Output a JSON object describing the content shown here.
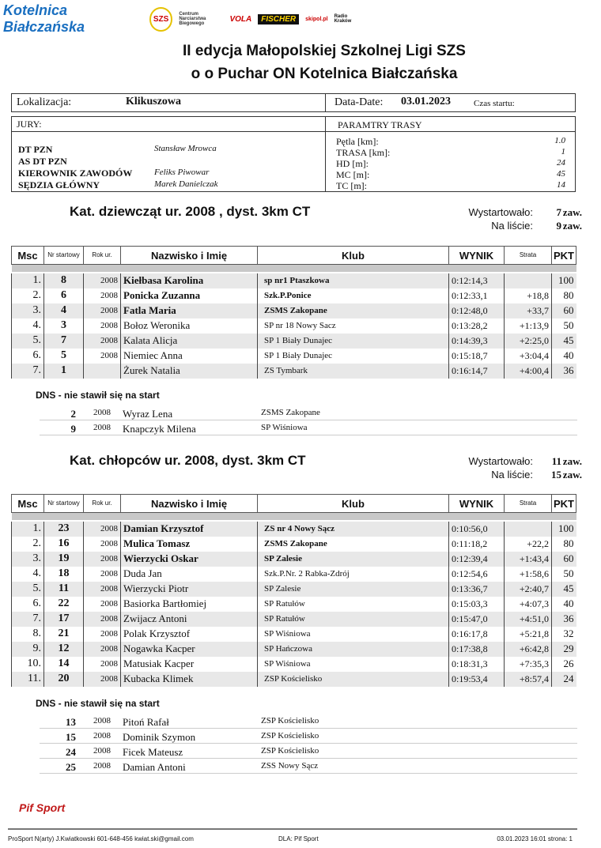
{
  "logos": [
    "Kotelnica Białczańska",
    "SZS",
    "Centrum Narciarstwa Biegowego",
    "VOLA",
    "FISCHER",
    "skipol.pl",
    "Radio Kraków"
  ],
  "title1": "II edycja Małopolskiej Szkolnej Ligi SZS",
  "title2": "o o Puchar ON Kotelnica Białczańska",
  "info": {
    "loc_label": "Lokalizacja:",
    "loc": "Klikuszowa",
    "date_label": "Data-Date:",
    "date": "03.01.2023",
    "start_label": "Czas startu:"
  },
  "jury": {
    "label": "JURY:",
    "roles": [
      {
        "r": "DT PZN",
        "n": "Stansław Mrowca"
      },
      {
        "r": "AS DT PZN",
        "n": ""
      },
      {
        "r": "KIEROWNIK ZAWODÓW",
        "n": "Feliks Piwowar"
      },
      {
        "r": "SĘDZIA GŁÓWNY",
        "n": "Marek Danielczak"
      }
    ]
  },
  "trasa": {
    "label": "PARAMTRY TRASY",
    "params": [
      {
        "k": "Pętla [km]:",
        "v": "1.0"
      },
      {
        "k": "TRASA [km]:",
        "v": "1"
      },
      {
        "k": "HD [m]:",
        "v": "24"
      },
      {
        "k": "MC [m]:",
        "v": "45"
      },
      {
        "k": "TC [m]:",
        "v": "14"
      }
    ]
  },
  "headers": [
    "Msc",
    "Nr startowy",
    "Rok ur.",
    "Nazwisko i Imię",
    "Klub",
    "WYNIK",
    "Strata",
    "PKT"
  ],
  "started_label": "Wystartowało:",
  "list_label": "Na liście:",
  "zaw": "zaw.",
  "dns_label": "DNS - nie stawił się na start",
  "categories": [
    {
      "title": "Kat. dziewcząt ur. 2008 , dyst. 3km CT",
      "started": "7",
      "listed": "9",
      "rows": [
        [
          "1.",
          "8",
          "2008",
          "Kiełbasa Karolina",
          "sp nr1 Ptaszkowa",
          "0:12:14,3",
          "",
          "100"
        ],
        [
          "2.",
          "6",
          "2008",
          "Ponicka Zuzanna",
          "Szk.P.Ponice",
          "0:12:33,1",
          "+18,8",
          "80"
        ],
        [
          "3.",
          "4",
          "2008",
          "Fatla Maria",
          "ZSMS Zakopane",
          "0:12:48,0",
          "+33,7",
          "60"
        ],
        [
          "4.",
          "3",
          "2008",
          "Bołoz Weronika",
          "SP nr 18 Nowy Sacz",
          "0:13:28,2",
          "+1:13,9",
          "50"
        ],
        [
          "5.",
          "7",
          "2008",
          "Kalata Alicja",
          "SP 1 Biały Dunajec",
          "0:14:39,3",
          "+2:25,0",
          "45"
        ],
        [
          "6.",
          "5",
          "2008",
          "Niemiec  Anna",
          "SP 1 Biały Dunajec",
          "0:15:18,7",
          "+3:04,4",
          "40"
        ],
        [
          "7.",
          "1",
          "",
          "Żurek Natalia",
          "ZS Tymbark",
          "0:16:14,7",
          "+4:00,4",
          "36"
        ]
      ],
      "dns": [
        [
          "2",
          "2008",
          "Wyraz Lena",
          "ZSMS Zakopane"
        ],
        [
          "9",
          "2008",
          "Knapczyk Milena",
          "SP Wiśniowa"
        ]
      ]
    },
    {
      "title": "Kat. chłopców ur. 2008, dyst. 3km CT",
      "started": "11",
      "listed": "15",
      "rows": [
        [
          "1.",
          "23",
          "2008",
          "Damian Krzysztof",
          "ZS nr  4  Nowy Sącz",
          "0:10:56,0",
          "",
          "100"
        ],
        [
          "2.",
          "16",
          "2008",
          "Mulica Tomasz",
          "ZSMS Zakopane",
          "0:11:18,2",
          "+22,2",
          "80"
        ],
        [
          "3.",
          "19",
          "2008",
          "Wierzycki Oskar",
          "SP Zalesie",
          "0:12:39,4",
          "+1:43,4",
          "60"
        ],
        [
          "4.",
          "18",
          "2008",
          "Duda Jan",
          "Szk.P.Nr. 2 Rabka-Zdrój",
          "0:12:54,6",
          "+1:58,6",
          "50"
        ],
        [
          "5.",
          "11",
          "2008",
          "Wierzycki Piotr",
          "SP Zalesie",
          "0:13:36,7",
          "+2:40,7",
          "45"
        ],
        [
          "6.",
          "22",
          "2008",
          "Basiorka Bartłomiej",
          "SP Ratułów",
          "0:15:03,3",
          "+4:07,3",
          "40"
        ],
        [
          "7.",
          "17",
          "2008",
          "Zwijacz Antoni",
          "SP Ratułów",
          "0:15:47,0",
          "+4:51,0",
          "36"
        ],
        [
          "8.",
          "21",
          "2008",
          "Polak Krzysztof",
          "SP Wiśniowa",
          "0:16:17,8",
          "+5:21,8",
          "32"
        ],
        [
          "9.",
          "12",
          "2008",
          "Nogawka Kacper",
          "SP Hańczowa",
          "0:17:38,8",
          "+6:42,8",
          "29"
        ],
        [
          "10.",
          "14",
          "2008",
          "Matusiak Kacper",
          "SP Wiśniowa",
          "0:18:31,3",
          "+7:35,3",
          "26"
        ],
        [
          "11.",
          "20",
          "2008",
          "Kubacka Klimek",
          "ZSP Kościelisko",
          "0:19:53,4",
          "+8:57,4",
          "24"
        ]
      ],
      "dns": [
        [
          "13",
          "2008",
          "Pitoń Rafał",
          "ZSP Kościelisko"
        ],
        [
          "15",
          "2008",
          "Dominik Szymon",
          "ZSP Kościelisko"
        ],
        [
          "24",
          "2008",
          "Ficek Mateusz",
          "ZSP Kościelisko"
        ],
        [
          "25",
          "2008",
          "Damian Antoni",
          "ZSS Nowy Sącz"
        ]
      ]
    }
  ],
  "footer": {
    "logo": "Pif Sport",
    "left": "ProSport N(arty) J.Kwiatkowski 601-648-456   kwiat.ski@gmail.com",
    "mid": "DLA: Pif Sport",
    "right": "03.01.2023 16:01   strona: 1"
  }
}
